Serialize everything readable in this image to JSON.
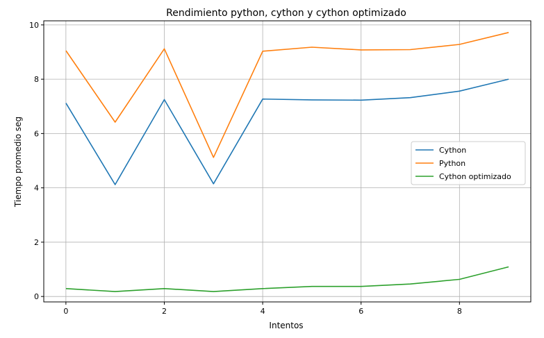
{
  "chart_data": {
    "type": "line",
    "title": "Rendimiento python, cython y cython optimizado",
    "xlabel": "Intentos",
    "ylabel": "Tiempo promedio seg",
    "x": [
      0,
      1,
      2,
      3,
      4,
      5,
      6,
      7,
      8,
      9
    ],
    "xlim": [
      -0.45,
      9.45
    ],
    "ylim": [
      -0.2,
      10.15
    ],
    "xticks": [
      0,
      2,
      4,
      6,
      8
    ],
    "yticks": [
      0,
      2,
      4,
      6,
      8,
      10
    ],
    "grid": true,
    "legend_position": "center-right",
    "series": [
      {
        "name": "Cython",
        "color": "#1f77b4",
        "values": [
          7.12,
          4.12,
          7.25,
          4.15,
          7.27,
          7.24,
          7.23,
          7.32,
          7.56,
          8.0
        ]
      },
      {
        "name": "Python",
        "color": "#ff7f0e",
        "values": [
          9.05,
          6.42,
          9.12,
          5.12,
          9.03,
          9.18,
          9.08,
          9.09,
          9.28,
          9.72
        ]
      },
      {
        "name": "Cython optimizado",
        "color": "#2ca02c",
        "values": [
          0.29,
          0.18,
          0.29,
          0.18,
          0.29,
          0.37,
          0.37,
          0.46,
          0.63,
          1.09
        ]
      }
    ]
  }
}
